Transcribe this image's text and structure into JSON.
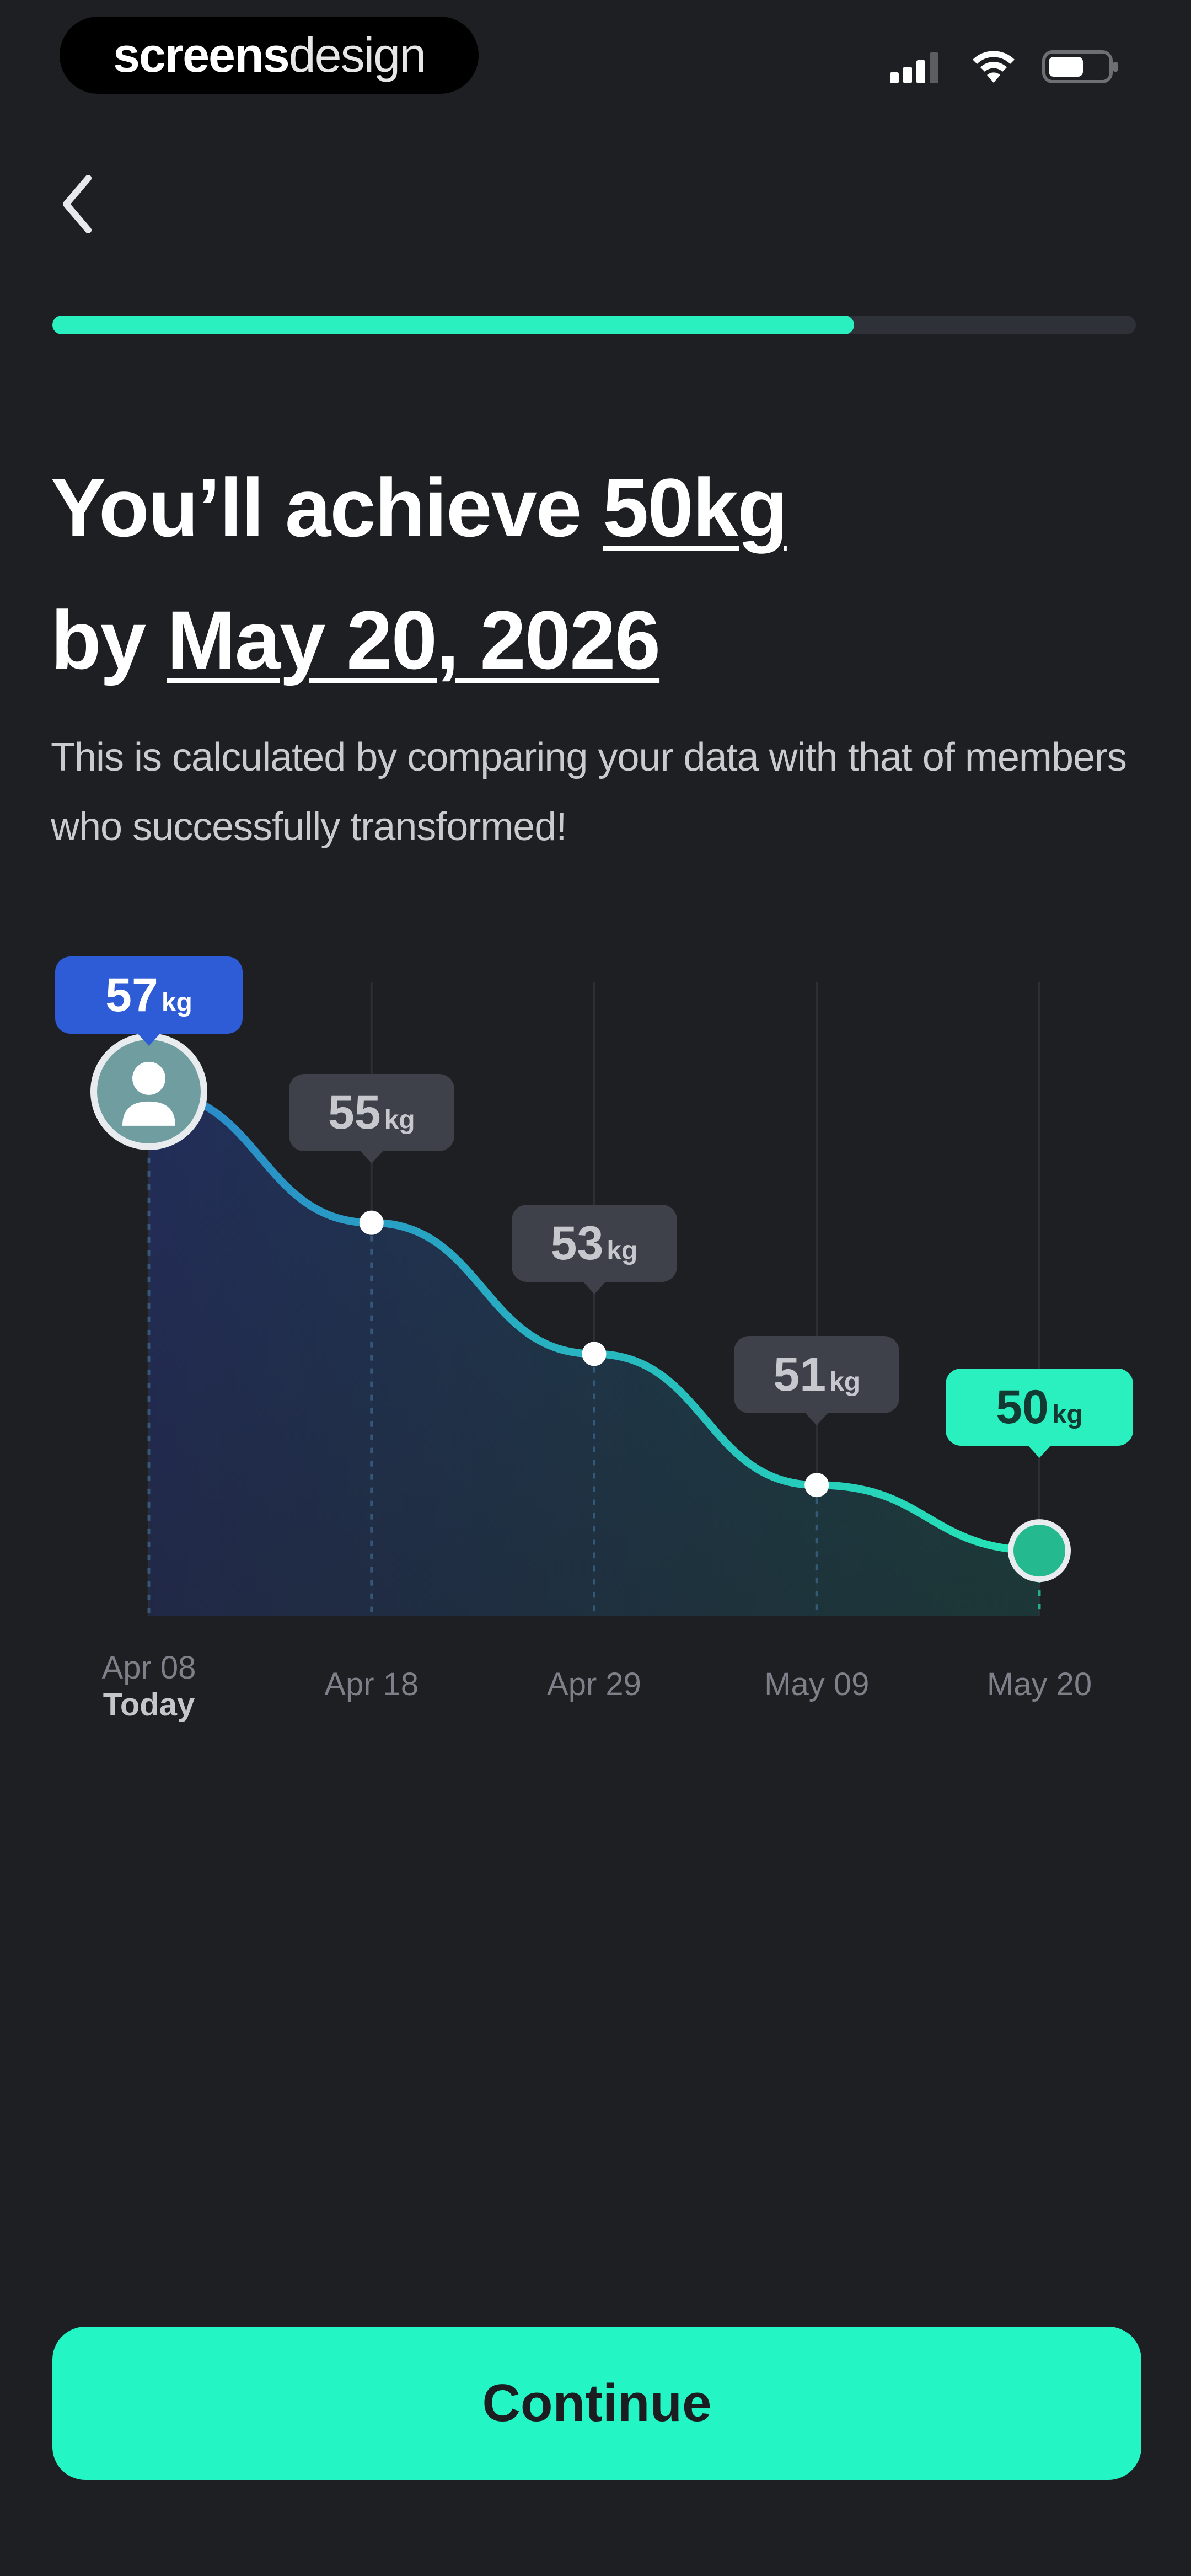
{
  "status_bar": {
    "brand_bold": "screens",
    "brand_light": "design"
  },
  "nav": {
    "back_icon": "chevron-left-icon"
  },
  "progress": {
    "fraction": 0.74
  },
  "headline": {
    "line1_prefix": "You’ll achieve ",
    "target_weight": "50kg",
    "line2_prefix": "by ",
    "target_date": "May 20, 2026"
  },
  "subtitle": "This is calculated by comparing your data with that of members who successfully transformed!",
  "chart_data": {
    "type": "area",
    "categories": [
      "Apr 08",
      "Apr 18",
      "Apr 29",
      "May 09",
      "May 20"
    ],
    "sub_labels": [
      "Today",
      "",
      "",
      "",
      ""
    ],
    "values": [
      57,
      55,
      53,
      51,
      50
    ],
    "unit": "kg",
    "point_labels": [
      "57",
      "55",
      "53",
      "51",
      "50"
    ],
    "ylim": [
      49,
      58
    ],
    "grid": true,
    "colors": {
      "start": "#2e5bd6",
      "end": "#2af0bf",
      "mid_tip": "#3e4149",
      "line_start": "#2a86c9",
      "line_end": "#25e6b6"
    }
  },
  "cta": {
    "label": "Continue"
  },
  "colors": {
    "accent": "#24f5c4",
    "background": "#1e1f23"
  }
}
